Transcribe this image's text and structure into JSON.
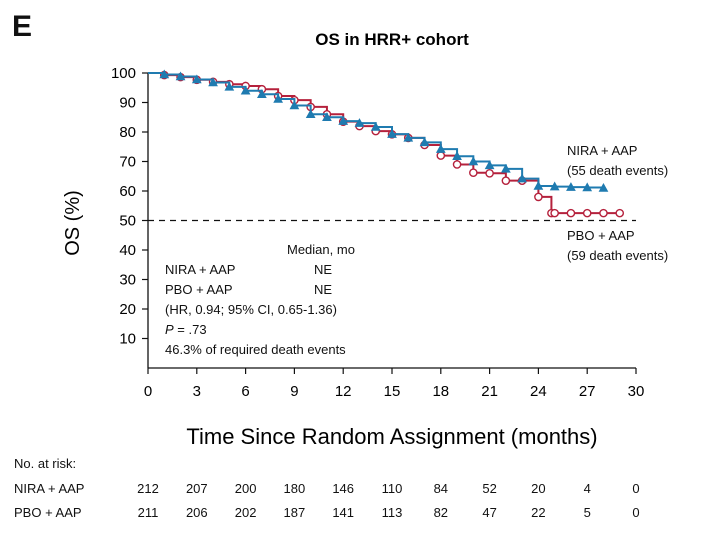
{
  "panel_letter": "E",
  "chart_data": {
    "type": "line",
    "title": "OS in HRR+ cohort",
    "xlabel": "Time Since Random Assignment (months)",
    "ylabel": "OS (%)",
    "xlim": [
      0,
      30
    ],
    "ylim": [
      0,
      100
    ],
    "x_ticks": [
      0,
      3,
      6,
      9,
      12,
      15,
      18,
      21,
      24,
      27,
      30
    ],
    "y_ticks": [
      10,
      20,
      30,
      40,
      50,
      60,
      70,
      80,
      90,
      100
    ],
    "grid": false,
    "reference_line": {
      "y": 50,
      "style": "dashed"
    },
    "series": [
      {
        "name": "NIRA + AAP",
        "events_label": "(55 death events)",
        "color": "#1f7bb0",
        "marker": "triangle",
        "points": [
          [
            0,
            100
          ],
          [
            1,
            99.5
          ],
          [
            2,
            98.8
          ],
          [
            3,
            97.8
          ],
          [
            4,
            96.8
          ],
          [
            5,
            95.3
          ],
          [
            6,
            94
          ],
          [
            7,
            92.8
          ],
          [
            8,
            91.2
          ],
          [
            9,
            89
          ],
          [
            10,
            86
          ],
          [
            11,
            85
          ],
          [
            12,
            83.7
          ],
          [
            13,
            83
          ],
          [
            14,
            81.7
          ],
          [
            15,
            79.3
          ],
          [
            16,
            78
          ],
          [
            17,
            76.5
          ],
          [
            18,
            74.2
          ],
          [
            19,
            71.8
          ],
          [
            20,
            70
          ],
          [
            21,
            68.7
          ],
          [
            22,
            67.5
          ],
          [
            23,
            64.2
          ],
          [
            24,
            61.7
          ],
          [
            25,
            61.5
          ],
          [
            26,
            61.3
          ],
          [
            27,
            61.2
          ],
          [
            28,
            61
          ]
        ]
      },
      {
        "name": "PBO + AAP",
        "events_label": "(59 death events)",
        "color": "#b5213c",
        "marker": "circle",
        "points": [
          [
            0,
            100
          ],
          [
            1,
            99.3
          ],
          [
            2,
            98.6
          ],
          [
            3,
            97.7
          ],
          [
            4,
            97
          ],
          [
            5,
            96.2
          ],
          [
            6,
            95.6
          ],
          [
            7,
            94.5
          ],
          [
            8,
            92.2
          ],
          [
            9,
            90.8
          ],
          [
            10,
            88.5
          ],
          [
            11,
            86
          ],
          [
            12,
            83.5
          ],
          [
            13,
            82
          ],
          [
            14,
            80.3
          ],
          [
            15,
            79.2
          ],
          [
            16,
            78
          ],
          [
            17,
            75.6
          ],
          [
            18,
            72
          ],
          [
            19,
            69
          ],
          [
            20,
            66.2
          ],
          [
            21,
            66
          ],
          [
            22,
            63.5
          ],
          [
            23,
            63.5
          ],
          [
            24,
            58
          ],
          [
            24.8,
            52.5
          ],
          [
            25,
            52.5
          ],
          [
            26,
            52.5
          ],
          [
            27,
            52.5
          ],
          [
            28,
            52.5
          ],
          [
            29,
            52.5
          ]
        ]
      }
    ]
  },
  "stats": {
    "header": "Median, mo",
    "rows": [
      {
        "label": "NIRA + AAP",
        "value": "NE"
      },
      {
        "label": "PBO + AAP",
        "value": "NE"
      }
    ],
    "hr": "(HR, 0.94; 95% CI, 0.65-1.36)",
    "p_label": "P",
    "p_value": "= .73",
    "required": "46.3% of required death events"
  },
  "risk_table": {
    "title": "No. at risk:",
    "times": [
      0,
      3,
      6,
      9,
      12,
      15,
      18,
      21,
      24,
      27,
      30
    ],
    "rows": [
      {
        "label": "NIRA + AAP",
        "values": [
          "212",
          "207",
          "200",
          "180",
          "146",
          "110",
          "84",
          "52",
          "20",
          "4",
          "0"
        ]
      },
      {
        "label": "PBO + AAP",
        "values": [
          "211",
          "206",
          "202",
          "187",
          "141",
          "113",
          "82",
          "47",
          "22",
          "5",
          "0"
        ]
      }
    ]
  }
}
